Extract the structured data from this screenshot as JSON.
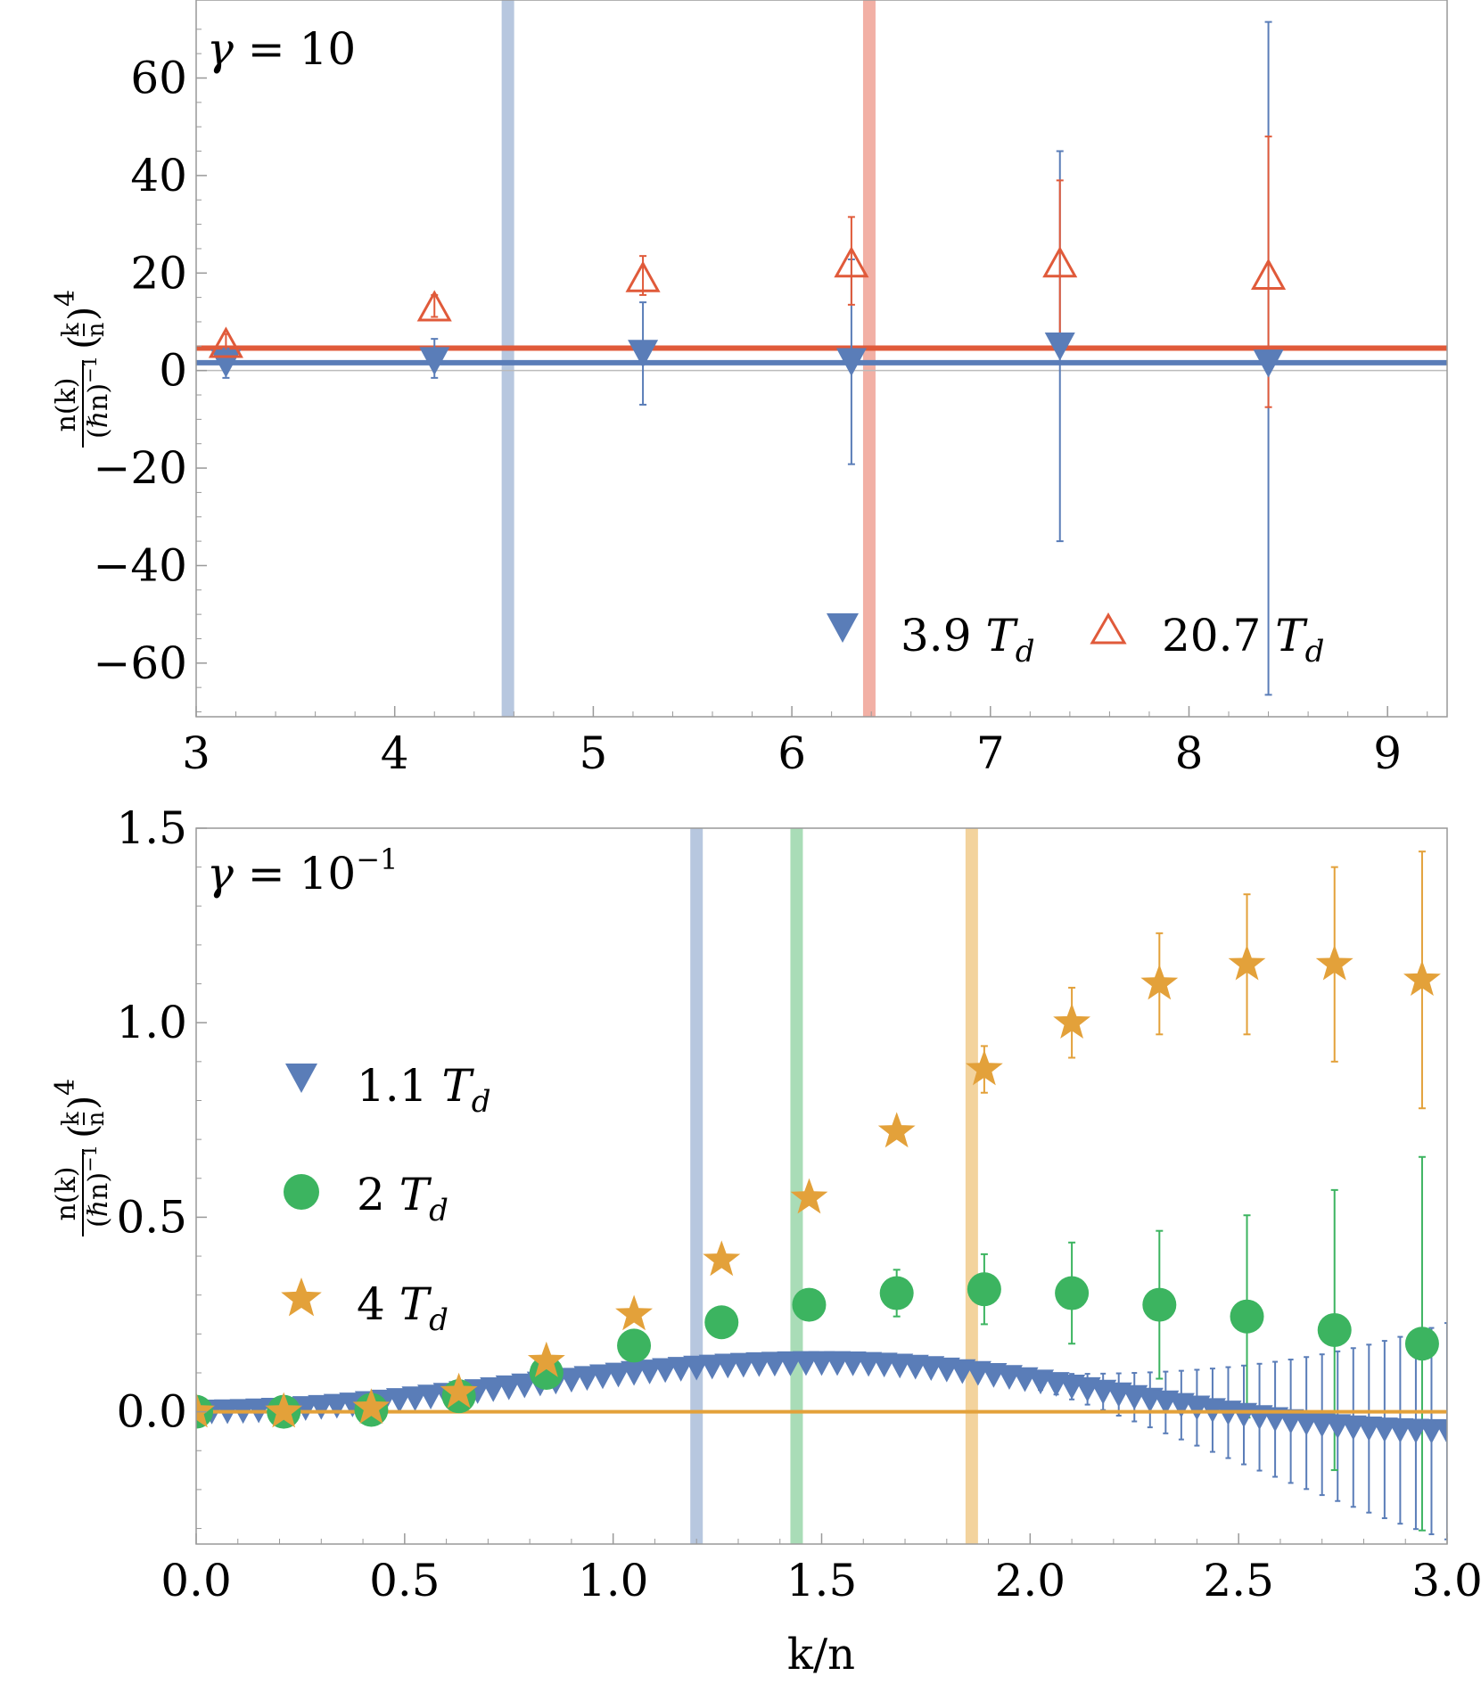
{
  "chart_data": [
    {
      "type": "scatter",
      "annotation": "γ = 10",
      "annotation_parts": {
        "symbol": "γ",
        "relation": " = ",
        "value": "10"
      },
      "xlabel": "",
      "ylabel": {
        "numerator": "n(k)",
        "denominator": "(ℏn)",
        "denominator_power": "−1",
        "factor_num": "k",
        "factor_den": "n",
        "factor_power": "4"
      },
      "xlim": [
        3,
        9.3
      ],
      "ylim": [
        -71,
        76
      ],
      "xticks": [
        3,
        4,
        5,
        6,
        7,
        8,
        9
      ],
      "xtick_labels": [
        "3",
        "4",
        "5",
        "6",
        "7",
        "8",
        "9"
      ],
      "yticks": [
        60,
        40,
        20,
        0,
        -20,
        -40,
        -60
      ],
      "ytick_labels": [
        "60",
        "40",
        "20",
        "0",
        "−20",
        "−40",
        "−60"
      ],
      "series": [
        {
          "name": "3.9 T_d",
          "label_num": "3.9",
          "label_unit": "T",
          "label_sub": "d",
          "marker": "triangle-down",
          "color": "#5a7db8",
          "x": [
            3.15,
            4.2,
            5.25,
            6.3,
            7.35,
            8.4
          ],
          "y": [
            1.5,
            2.0,
            3.5,
            1.8,
            5.0,
            1.5
          ],
          "err_low": [
            3.0,
            3.5,
            10.5,
            21.0,
            40.0,
            68.0
          ],
          "err_high": [
            3.0,
            4.5,
            10.5,
            21.0,
            40.0,
            70.0
          ]
        },
        {
          "name": "20.7 T_d",
          "label_num": "20.7",
          "label_unit": "T",
          "label_sub": "d",
          "marker": "triangle-up-open",
          "color": "#e05a3a",
          "x": [
            3.15,
            4.2,
            5.25,
            6.3,
            7.35,
            8.4
          ],
          "y": [
            5.5,
            13.0,
            19.0,
            22.0,
            22.0,
            19.5
          ],
          "err_low": [
            2.0,
            2.0,
            3.5,
            8.5,
            17.0,
            27.0
          ],
          "err_high": [
            2.0,
            2.5,
            4.5,
            9.5,
            17.0,
            28.5
          ]
        }
      ],
      "horizontal_lines": [
        {
          "y": 4.6,
          "color": "#e05a3a"
        },
        {
          "y": 1.6,
          "color": "#5a7db8"
        },
        {
          "y": 0,
          "color": "#bbbbbb"
        }
      ],
      "vertical_bands": [
        {
          "x": 4.57,
          "color": "#b7c7df"
        },
        {
          "x": 6.39,
          "color": "#f2b0a5"
        }
      ],
      "legend": "bottom-right"
    },
    {
      "type": "scatter",
      "annotation": "γ = 10⁻¹",
      "annotation_parts": {
        "symbol": "γ",
        "relation": " = ",
        "value": "10",
        "exponent": "−1"
      },
      "xlabel": "k/n",
      "ylabel": {
        "numerator": "n(k)",
        "denominator": "(ℏn)",
        "denominator_power": "−1",
        "factor_num": "k",
        "factor_den": "n",
        "factor_power": "4"
      },
      "xlim": [
        0,
        3
      ],
      "ylim": [
        -0.34,
        1.5
      ],
      "xticks": [
        0,
        0.5,
        1,
        1.5,
        2,
        2.5,
        3
      ],
      "xtick_labels": [
        "0.0",
        "0.5",
        "1.0",
        "1.5",
        "2.0",
        "2.5",
        "3.0"
      ],
      "yticks": [
        1.5,
        1.0,
        0.5,
        0.0
      ],
      "ytick_labels": [
        "1.5",
        "1.0",
        "0.5",
        "0.0"
      ],
      "series": [
        {
          "name": "1.1 T_d",
          "label_num": "1.1",
          "label_unit": "T",
          "label_sub": "d",
          "marker": "triangle-down",
          "color": "#5a7db8",
          "dense": true,
          "xmin": 0,
          "xmax": 3,
          "step": 0.0375,
          "curve_peak": 0.125,
          "curve_peak_x": 1.5,
          "curve_end": -0.05
        },
        {
          "name": "2 T_d",
          "label_num": "2",
          "label_unit": "T",
          "label_sub": "d",
          "marker": "circle",
          "color": "#3cb460",
          "x": [
            0.0,
            0.21,
            0.42,
            0.63,
            0.84,
            1.05,
            1.26,
            1.47,
            1.68,
            1.89,
            2.1,
            2.31,
            2.52,
            2.73,
            2.94
          ],
          "y": [
            0.0,
            0.0,
            0.005,
            0.04,
            0.1,
            0.17,
            0.23,
            0.275,
            0.305,
            0.315,
            0.305,
            0.275,
            0.245,
            0.21,
            0.175
          ],
          "err": [
            0.0,
            0.0,
            0.0,
            0.0,
            0.0,
            0.0,
            0.0,
            0.0,
            0.06,
            0.09,
            0.13,
            0.19,
            0.26,
            0.36,
            0.48
          ]
        },
        {
          "name": "4 T_d",
          "label_num": "4",
          "label_unit": "T",
          "label_sub": "d",
          "marker": "star",
          "color": "#e3a13a",
          "x": [
            0.0,
            0.21,
            0.42,
            0.63,
            0.84,
            1.05,
            1.26,
            1.47,
            1.68,
            1.89,
            2.1,
            2.31,
            2.52,
            2.73,
            2.94
          ],
          "y": [
            0.0,
            0.0,
            0.01,
            0.05,
            0.13,
            0.25,
            0.39,
            0.55,
            0.72,
            0.88,
            1.0,
            1.1,
            1.15,
            1.15,
            1.11
          ],
          "err": [
            0.0,
            0.0,
            0.0,
            0.0,
            0.0,
            0.0,
            0.0,
            0.0,
            0.0,
            0.06,
            0.09,
            0.13,
            0.18,
            0.25,
            0.33
          ]
        }
      ],
      "horizontal_lines": [
        {
          "y": 0.0,
          "color": "#e3a13a"
        }
      ],
      "vertical_bands": [
        {
          "x": 1.2,
          "color": "#b7c7df"
        },
        {
          "x": 1.44,
          "color": "#a9dcb7"
        },
        {
          "x": 1.86,
          "color": "#f3d39d"
        }
      ],
      "legend": "left"
    }
  ]
}
